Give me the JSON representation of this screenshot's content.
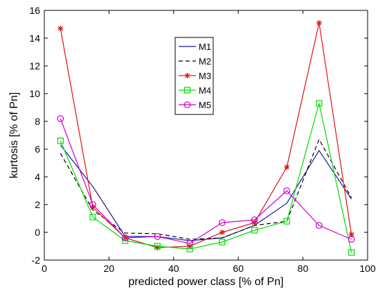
{
  "chart_data": {
    "type": "line",
    "title": "",
    "xlabel": "predicted power class [% of Pn]",
    "ylabel": "kurtosis [% of Pn]",
    "xlim": [
      0,
      100
    ],
    "ylim": [
      -2,
      16
    ],
    "xticks": [
      0,
      20,
      40,
      60,
      80,
      100
    ],
    "yticks": [
      -2,
      0,
      2,
      4,
      6,
      8,
      10,
      12,
      14,
      16
    ],
    "x": [
      5,
      15,
      25,
      35,
      45,
      55,
      65,
      75,
      85,
      95
    ],
    "grid": false,
    "legend_position": "top-center",
    "series": [
      {
        "name": "M1",
        "color": "#1a1aa6",
        "dash": "solid",
        "marker": "none",
        "values": [
          6.3,
          3.3,
          -0.3,
          -0.3,
          -0.6,
          -0.4,
          0.5,
          2.1,
          5.9,
          2.4
        ]
      },
      {
        "name": "M2",
        "color": "#000000",
        "dash": "dashed",
        "marker": "none",
        "values": [
          5.7,
          1.6,
          -0.05,
          -0.1,
          -0.5,
          -0.4,
          0.5,
          0.8,
          6.7,
          2.5
        ]
      },
      {
        "name": "M3",
        "color": "#e01010",
        "dash": "solid",
        "marker": "star",
        "values": [
          14.7,
          1.8,
          -0.4,
          -1.1,
          -1.0,
          0.0,
          0.7,
          4.7,
          15.1,
          -0.15
        ]
      },
      {
        "name": "M4",
        "color": "#00dd00",
        "dash": "solid",
        "marker": "square",
        "values": [
          6.6,
          1.1,
          -0.6,
          -1.0,
          -1.2,
          -0.7,
          0.15,
          0.8,
          9.3,
          -1.45
        ]
      },
      {
        "name": "M5",
        "color": "#cc00cc",
        "dash": "solid",
        "marker": "circle",
        "values": [
          8.2,
          2.0,
          -0.4,
          -0.3,
          -0.8,
          0.7,
          0.9,
          3.0,
          0.5,
          -0.5
        ]
      }
    ]
  }
}
